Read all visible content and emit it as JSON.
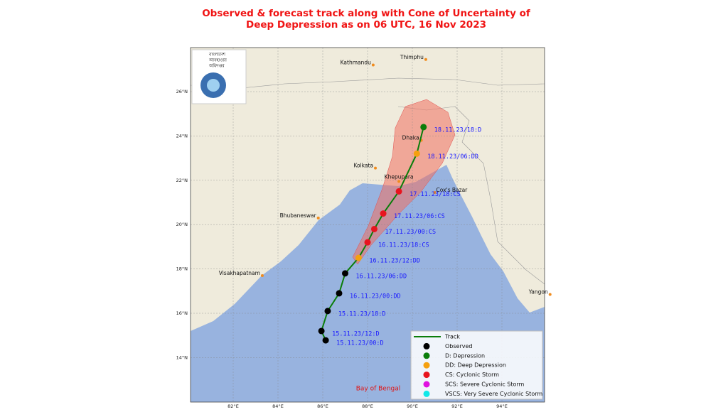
{
  "title": {
    "line1": "Observed & forecast track along with Cone of Uncertainty of",
    "line2": "Deep Depression as on 06 UTC, 16 Nov 2023"
  },
  "map": {
    "lonticks": [
      {
        "value": 82,
        "label": "82°E"
      },
      {
        "value": 84,
        "label": "84°E"
      },
      {
        "value": 86,
        "label": "86°E"
      },
      {
        "value": 88,
        "label": "88°E"
      },
      {
        "value": 90,
        "label": "90°E"
      },
      {
        "value": 92,
        "label": "92°E"
      },
      {
        "value": 94,
        "label": "94°E"
      }
    ],
    "latticks": [
      {
        "value": 26,
        "label": "26°N"
      },
      {
        "value": 24,
        "label": "24°N"
      },
      {
        "value": 22,
        "label": "22°N"
      },
      {
        "value": 20,
        "label": "20°N"
      },
      {
        "value": 18,
        "label": "18°N"
      },
      {
        "value": 16,
        "label": "16°N"
      },
      {
        "value": 14,
        "label": "14°N"
      }
    ],
    "region_label": "Bay of Bengal",
    "logo_text": [
      "বাংলাদেশ",
      "আবহাওয়া",
      "অধিদপ্তর"
    ]
  },
  "cities": [
    {
      "name": "Kathmandu",
      "lon": 88.25,
      "lat": 27.2
    },
    {
      "name": "Thimphu",
      "lon": 90.6,
      "lat": 27.45
    },
    {
      "name": "Dhaka",
      "lon": 90.4,
      "lat": 23.8
    },
    {
      "name": "Kolkata",
      "lon": 88.35,
      "lat": 22.55
    },
    {
      "name": "Khepupara",
      "lon": 89.4,
      "lat": 21.95
    },
    {
      "name": "Cox's Bazar",
      "lon": 91.0,
      "lat": 21.45
    },
    {
      "name": "Bhubaneswar",
      "lon": 85.8,
      "lat": 20.3
    },
    {
      "name": "Visakhapatnam",
      "lon": 83.3,
      "lat": 17.7
    },
    {
      "name": "Yangon",
      "lon": 96.15,
      "lat": 16.85
    }
  ],
  "track": {
    "color": "#0a7d0a",
    "points": [
      {
        "label": "15.11.23/00:D",
        "lon": 86.13,
        "lat": 14.78,
        "color": "#000000"
      },
      {
        "label": "15.11.23/12:D",
        "lon": 85.94,
        "lat": 15.2,
        "color": "#000000"
      },
      {
        "label": "15.11.23/18:D",
        "lon": 86.22,
        "lat": 16.1,
        "color": "#000000"
      },
      {
        "label": "16.11.23/00:DD",
        "lon": 86.73,
        "lat": 16.9,
        "color": "#000000"
      },
      {
        "label": "16.11.23/06:DD",
        "lon": 87.0,
        "lat": 17.8,
        "color": "#000000"
      },
      {
        "label": "16.11.23/12:DD",
        "lon": 87.6,
        "lat": 18.5,
        "color": "#f5a00f"
      },
      {
        "label": "16.11.23/18:CS",
        "lon": 88.0,
        "lat": 19.2,
        "color": "#e8141e"
      },
      {
        "label": "17.11.23/00:CS",
        "lon": 88.3,
        "lat": 19.8,
        "color": "#e8141e"
      },
      {
        "label": "17.11.23/06:CS",
        "lon": 88.7,
        "lat": 20.5,
        "color": "#e8141e"
      },
      {
        "label": "17.11.23/18:CS",
        "lon": 89.4,
        "lat": 21.5,
        "color": "#e8141e"
      },
      {
        "label": "18.11.23/06:DD",
        "lon": 90.2,
        "lat": 23.2,
        "color": "#f5a00f"
      },
      {
        "label": "18.11.23/18:D",
        "lon": 90.5,
        "lat": 24.4,
        "color": "#0a7d0a"
      }
    ]
  },
  "legend": [
    {
      "label": "Track",
      "color": "#0a7d0a"
    },
    {
      "label": "Observed",
      "color": "#000000"
    },
    {
      "label": "D: Depression",
      "color": "#0a7d0a"
    },
    {
      "label": "DD: Deep Depression",
      "color": "#f5a00f"
    },
    {
      "label": "CS: Cyclonic Storm",
      "color": "#e8141e"
    },
    {
      "label": "SCS: Severe Cyclonic Storm",
      "color": "#e010e0"
    },
    {
      "label": "VSCS: Very Severe Cyclonic Storm",
      "color": "#10e8e8"
    }
  ]
}
